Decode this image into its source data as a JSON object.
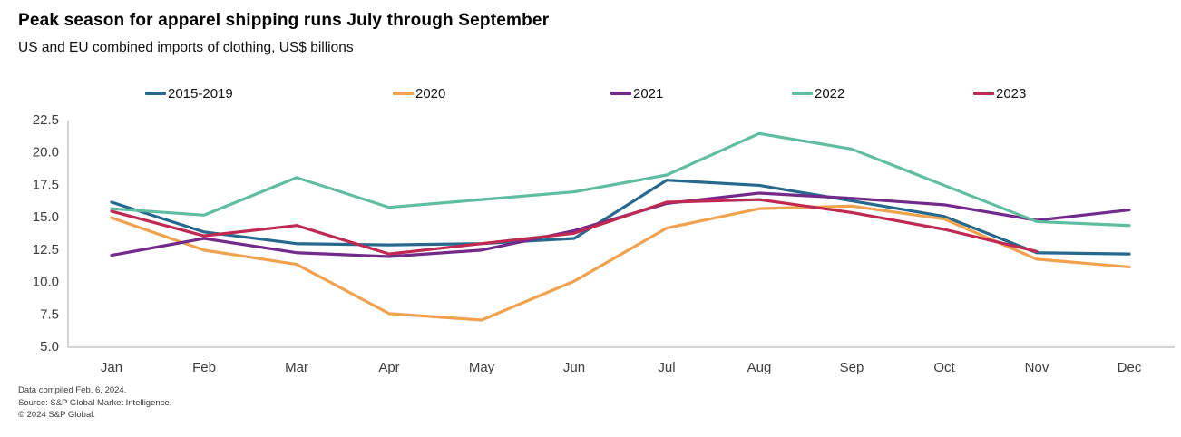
{
  "title": "Peak season for apparel shipping runs July through September",
  "subtitle": "US and EU combined imports of clothing, US$ billions",
  "footer": {
    "line1": "Data compiled Feb. 6, 2024.",
    "line2": "Source: S&P Global Market Intelligence.",
    "line3": "© 2024 S&P Global."
  },
  "colors": {
    "axis_line": "#c6c6c6",
    "tick_label": "#3d3d3d"
  },
  "chart_data": {
    "type": "line",
    "title": "Peak season for apparel shipping runs July through September",
    "subtitle": "US and EU combined imports of clothing, US$ billions",
    "categories": [
      "Jan",
      "Feb",
      "Mar",
      "Apr",
      "May",
      "Jun",
      "Jul",
      "Aug",
      "Sep",
      "Oct",
      "Nov",
      "Dec"
    ],
    "ylabel": "US$ billions",
    "ylim": [
      5.0,
      22.5
    ],
    "yticks": [
      "5.0",
      "7.5",
      "10.0",
      "12.5",
      "15.0",
      "17.5",
      "20.0",
      "22.5"
    ],
    "grid": false,
    "legend_position": "top",
    "series": [
      {
        "name": "2015-2019",
        "color": "#26698c",
        "values": [
          16.2,
          13.9,
          13.0,
          12.9,
          13.0,
          13.4,
          17.9,
          17.5,
          16.3,
          15.1,
          12.3,
          12.2
        ]
      },
      {
        "name": "2020",
        "color": "#f0a24f",
        "values": [
          15.0,
          12.5,
          11.4,
          7.6,
          7.1,
          10.1,
          14.2,
          15.7,
          15.9,
          14.9,
          11.8,
          11.2
        ]
      },
      {
        "name": "2021",
        "color": "#722b8a",
        "values": [
          12.1,
          13.4,
          12.3,
          12.0,
          12.5,
          14.0,
          16.1,
          16.9,
          16.5,
          16.0,
          14.8,
          15.6
        ]
      },
      {
        "name": "2022",
        "color": "#5fbda1",
        "values": [
          15.7,
          15.2,
          18.1,
          15.8,
          16.4,
          17.0,
          18.3,
          21.5,
          20.3,
          17.5,
          14.7,
          14.4
        ]
      },
      {
        "name": "2023",
        "color": "#c02a52",
        "values": [
          15.5,
          13.6,
          14.4,
          12.2,
          13.0,
          13.8,
          16.2,
          16.4,
          15.4,
          14.1,
          12.4,
          null
        ]
      }
    ]
  }
}
